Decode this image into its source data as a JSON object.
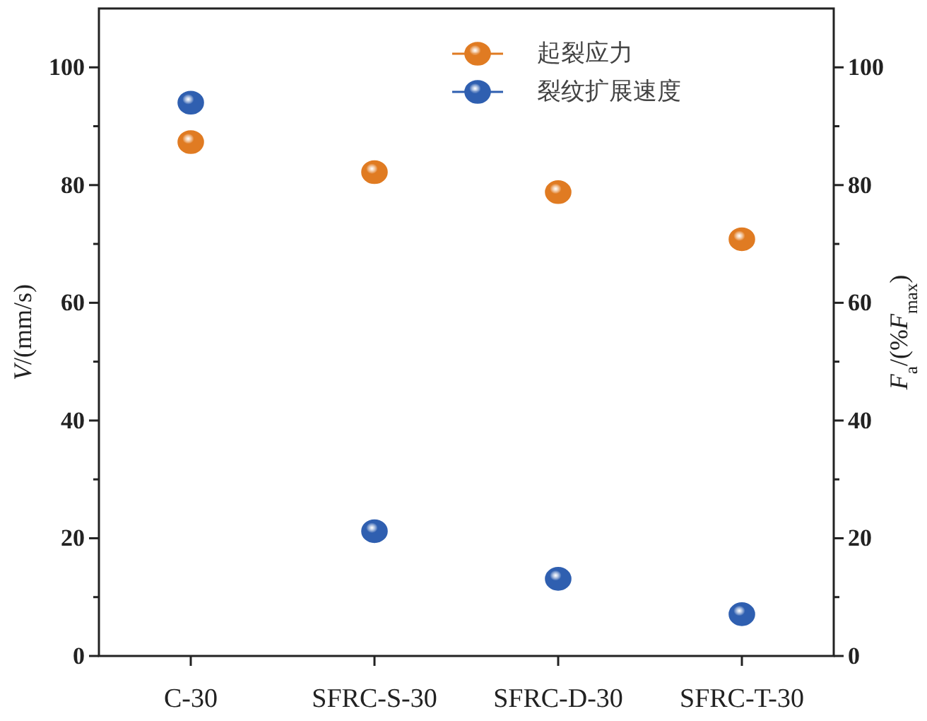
{
  "chart_data": {
    "type": "scatter",
    "categories": [
      "C-30",
      "SFRC-S-30",
      "SFRC-D-30",
      "SFRC-T-30"
    ],
    "series": [
      {
        "name": "起裂应力",
        "color": "#e07b22",
        "axis": "y2",
        "values": [
          87.3,
          82.2,
          78.8,
          70.8
        ]
      },
      {
        "name": "裂纹扩展速度",
        "color": "#2f5fb0",
        "values": [
          94.0,
          21.2,
          13.1,
          7.1
        ]
      }
    ],
    "ylabel": "*V*/(mm/s)",
    "y2label": "*F*$_{a}$/(%*F*$_{max}$)",
    "ylim": [
      0,
      110
    ],
    "yticks": [
      0,
      {
        "value": 10,
        "label": null
      },
      20,
      {
        "value": 30,
        "label": null
      },
      40,
      {
        "value": 50,
        "label": null
      },
      60,
      {
        "value": 70,
        "label": null
      },
      80,
      {
        "value": 90,
        "label": null
      },
      100
    ],
    "y2lim": [
      0,
      110
    ],
    "y2ticks": [
      0,
      {
        "value": 10,
        "label": null
      },
      20,
      {
        "value": 30,
        "label": null
      },
      40,
      {
        "value": 50,
        "label": null
      },
      60,
      {
        "value": 70,
        "label": null
      },
      80,
      {
        "value": 90,
        "label": null
      },
      100
    ],
    "marker": "circle",
    "legend": "top right"
  }
}
